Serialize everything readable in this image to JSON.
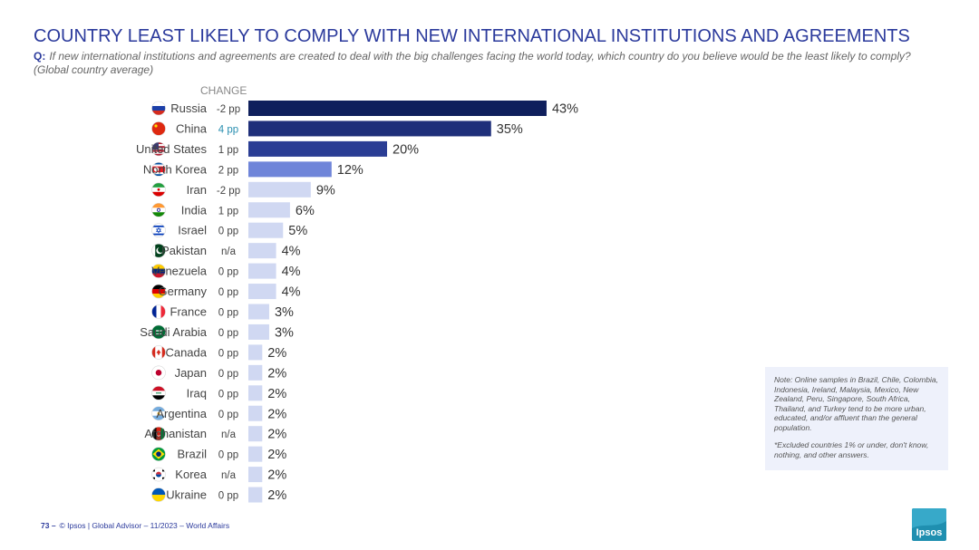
{
  "header": {
    "title": "COUNTRY LEAST LIKELY TO COMPLY WITH NEW INTERNATIONAL INSTITUTIONS AND AGREEMENTS",
    "question_prefix": "Q:",
    "question_text": "If new international institutions and agreements are created to deal with the big challenges facing the world today, which country do you believe would be the least likely to comply? (Global country average)"
  },
  "change_header": "CHANGE",
  "chart_data": {
    "type": "bar",
    "orientation": "horizontal",
    "value_unit": "%",
    "categories": [
      "Russia",
      "China",
      "United States",
      "North Korea",
      "Iran",
      "India",
      "Israel",
      "Pakistan",
      "Venezuela",
      "Germany",
      "France",
      "Saudi Arabia",
      "Canada",
      "Japan",
      "Iraq",
      "Argentina",
      "Afghanistan",
      "Brazil",
      "Korea",
      "Ukraine"
    ],
    "values": [
      43,
      35,
      20,
      12,
      9,
      6,
      5,
      4,
      4,
      4,
      3,
      3,
      2,
      2,
      2,
      2,
      2,
      2,
      2,
      2
    ],
    "changes": [
      "-2 pp",
      "4 pp",
      "1 pp",
      "2 pp",
      "-2 pp",
      "1 pp",
      "0 pp",
      "n/a",
      "0 pp",
      "0 pp",
      "0 pp",
      "0 pp",
      "0 pp",
      "0 pp",
      "0 pp",
      "0 pp",
      "n/a",
      "0 pp",
      "n/a",
      "0 pp"
    ],
    "change_highlight_color": "#2a8fb0",
    "bar_colors": [
      "#0f1f5c",
      "#1f2f7a",
      "#2a3d94",
      "#6f85d9",
      "#d0d8f2",
      "#d0d8f2",
      "#d0d8f2",
      "#d0d8f2",
      "#d0d8f2",
      "#d0d8f2",
      "#d0d8f2",
      "#d0d8f2",
      "#d0d8f2",
      "#d0d8f2",
      "#d0d8f2",
      "#d0d8f2",
      "#d0d8f2",
      "#d0d8f2",
      "#d0d8f2",
      "#d0d8f2"
    ],
    "flag_icons": [
      "russia-flag-icon",
      "china-flag-icon",
      "united-states-flag-icon",
      "north-korea-flag-icon",
      "iran-flag-icon",
      "india-flag-icon",
      "israel-flag-icon",
      "pakistan-flag-icon",
      "venezuela-flag-icon",
      "germany-flag-icon",
      "france-flag-icon",
      "saudi-arabia-flag-icon",
      "canada-flag-icon",
      "japan-flag-icon",
      "iraq-flag-icon",
      "argentina-flag-icon",
      "afghanistan-flag-icon",
      "brazil-flag-icon",
      "korea-flag-icon",
      "ukraine-flag-icon"
    ],
    "xlim": [
      0,
      45
    ],
    "grid": false,
    "legend": "none"
  },
  "note": {
    "text": "Note: Online samples in Brazil, Chile, Colombia, Indonesia, Ireland, Malaysia, Mexico, New Zealand, Peru, Singapore, South Africa, Thailand, and Turkey tend to be more urban, educated, and/or affluent than the general population.",
    "excluded": "*Excluded countries 1% or under, don't know, nothing, and other answers."
  },
  "footer": {
    "page_number": "73 –",
    "text": "© Ipsos | Global Advisor – 11/2023 – World Affairs"
  },
  "logo": {
    "text": "Ipsos",
    "color": "#1f8fb0"
  }
}
